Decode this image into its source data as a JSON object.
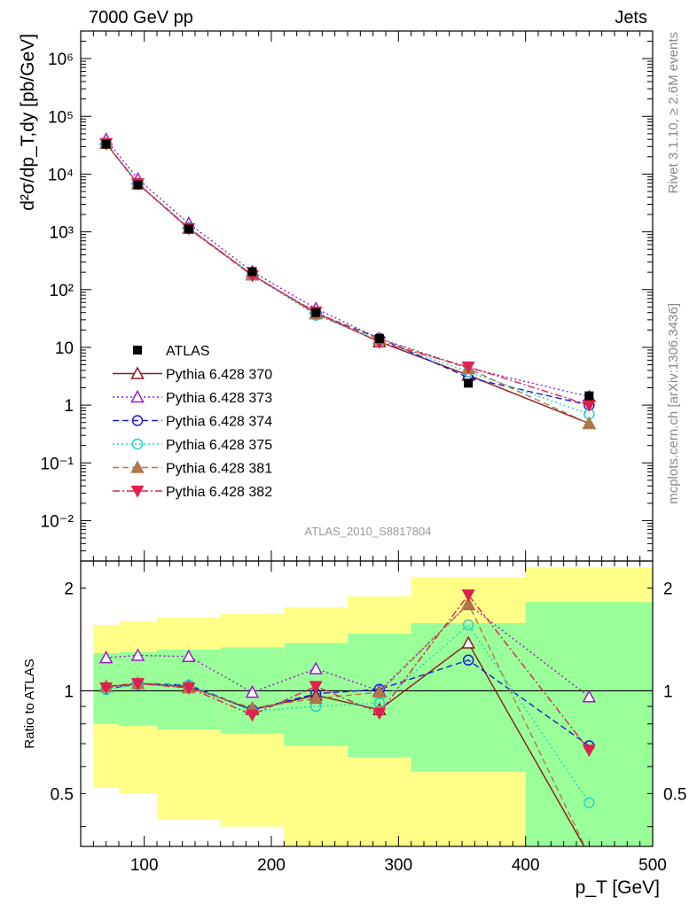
{
  "header": {
    "left": "7000 GeV pp",
    "right": "Jets"
  },
  "side_labels": {
    "rivet": "Rivet 3.1.10, ≥ 2.6M events",
    "mcplots": "mcplots.cern.ch [arXiv:1306.3436]"
  },
  "analysis_id": "ATLAS_2010_S8817804",
  "colors": {
    "atlas": "#000000",
    "p370": "#8b1a1a",
    "p373": "#9a1ac8",
    "p374": "#1a1ad8",
    "p375": "#22d4c4",
    "p381": "#b07848",
    "p382": "#e0204c",
    "band_inner": "#99ff99",
    "band_outer": "#ffff88"
  },
  "chart_data": [
    {
      "type": "line",
      "panel": "main",
      "ylabel": "d²σ/dp_T,dy [pb/GeV]",
      "yscale": "log",
      "ylim": [
        0.002,
        3000000
      ],
      "xlim": [
        50,
        500
      ],
      "y_tick_labels": [
        "10⁶",
        "10⁵",
        "10⁴",
        "10³",
        "10²",
        "10",
        "1",
        "10⁻¹",
        "10⁻²"
      ],
      "legend_position": "lower-left",
      "data_series": {
        "name": "ATLAS",
        "x": [
          70,
          95,
          135,
          185,
          235,
          285,
          355,
          450
        ],
        "y": [
          33000,
          6500,
          1120,
          205,
          40,
          14.2,
          2.4,
          1.45
        ]
      },
      "series": [
        {
          "name": "Pythia 6.428 370",
          "color_key": "p370",
          "marker": "triangle-up-open",
          "dash": "solid",
          "x": [
            70,
            95,
            135,
            185,
            235,
            285,
            355,
            450
          ],
          "y": [
            34000,
            6800,
            1150,
            180,
            39,
            12.5,
            3.3,
            0.48
          ]
        },
        {
          "name": "Pythia 6.428 373",
          "color_key": "p373",
          "marker": "triangle-up-open",
          "dash": "dot",
          "x": [
            70,
            95,
            135,
            185,
            235,
            285,
            355,
            450
          ],
          "y": [
            40000,
            8200,
            1400,
            205,
            47,
            14.2,
            4.4,
            1.4
          ]
        },
        {
          "name": "Pythia 6.428 374",
          "color_key": "p374",
          "marker": "circle-open",
          "dash": "dash",
          "x": [
            70,
            95,
            135,
            185,
            235,
            285,
            355,
            450
          ],
          "y": [
            33500,
            6850,
            1170,
            180,
            39,
            14.4,
            3.0,
            1.0
          ]
        },
        {
          "name": "Pythia 6.428 375",
          "color_key": "p375",
          "marker": "circle-open",
          "dash": "dot",
          "x": [
            70,
            95,
            135,
            185,
            235,
            285,
            355,
            450
          ],
          "y": [
            33500,
            6750,
            1160,
            178,
            36,
            13.0,
            3.8,
            0.7
          ]
        },
        {
          "name": "Pythia 6.428 381",
          "color_key": "p381",
          "marker": "triangle-up-filled",
          "dash": "dash",
          "x": [
            70,
            95,
            135,
            185,
            235,
            285,
            355,
            450
          ],
          "y": [
            34000,
            6800,
            1150,
            182,
            38,
            14.0,
            4.3,
            0.48
          ]
        },
        {
          "name": "Pythia 6.428 382",
          "color_key": "p382",
          "marker": "triangle-down-filled",
          "dash": "dashdot",
          "x": [
            70,
            95,
            135,
            185,
            235,
            285,
            355,
            450
          ],
          "y": [
            33800,
            6800,
            1140,
            175,
            41,
            12.3,
            4.6,
            1.0
          ]
        }
      ]
    },
    {
      "type": "line",
      "panel": "ratio",
      "xlabel": "p_T [GeV]",
      "ylabel": "Ratio to ATLAS",
      "yscale": "log",
      "ylim": [
        0.35,
        2.4
      ],
      "xlim": [
        50,
        500
      ],
      "x_ticks": [
        100,
        200,
        300,
        400,
        500
      ],
      "y_ticks": [
        0.5,
        1,
        2
      ],
      "reference_line": 1,
      "bands": [
        {
          "x": [
            60,
            80,
            110,
            160,
            210,
            260,
            310,
            400
          ],
          "x_end": 500,
          "inner_low": [
            0.8,
            0.79,
            0.77,
            0.75,
            0.69,
            0.64,
            0.58,
            0.33
          ],
          "inner_high": [
            1.29,
            1.3,
            1.32,
            1.34,
            1.38,
            1.47,
            1.58,
            1.82
          ],
          "outer_low": [
            0.52,
            0.5,
            0.42,
            0.4,
            0.33,
            0.3,
            0.28,
            0.25
          ],
          "outer_high": [
            1.56,
            1.6,
            1.64,
            1.68,
            1.76,
            1.89,
            2.15,
            2.3
          ]
        }
      ],
      "series": [
        {
          "name": "Pythia 6.428 370",
          "color_key": "p370",
          "marker": "triangle-up-open",
          "dash": "solid",
          "x": [
            70,
            95,
            135,
            185,
            235,
            285,
            355,
            450
          ],
          "y": [
            1.03,
            1.05,
            1.03,
            0.88,
            0.97,
            0.88,
            1.38,
            0.33
          ]
        },
        {
          "name": "Pythia 6.428 373",
          "color_key": "p373",
          "marker": "triangle-up-open",
          "dash": "dot",
          "x": [
            70,
            95,
            135,
            185,
            235,
            285,
            355,
            450
          ],
          "y": [
            1.25,
            1.27,
            1.26,
            0.99,
            1.16,
            1.0,
            1.79,
            0.96
          ]
        },
        {
          "name": "Pythia 6.428 374",
          "color_key": "p374",
          "marker": "circle-open",
          "dash": "dash",
          "x": [
            70,
            95,
            135,
            185,
            235,
            285,
            355,
            450
          ],
          "y": [
            1.01,
            1.05,
            1.04,
            0.88,
            0.98,
            1.01,
            1.23,
            0.69
          ]
        },
        {
          "name": "Pythia 6.428 375",
          "color_key": "p375",
          "marker": "circle-open",
          "dash": "dot",
          "x": [
            70,
            95,
            135,
            185,
            235,
            285,
            355,
            450
          ],
          "y": [
            1.01,
            1.04,
            1.04,
            0.87,
            0.9,
            0.92,
            1.56,
            0.47
          ]
        },
        {
          "name": "Pythia 6.428 381",
          "color_key": "p381",
          "marker": "triangle-up-filled",
          "dash": "dash",
          "x": [
            70,
            95,
            135,
            185,
            235,
            285,
            355,
            450
          ],
          "y": [
            1.03,
            1.05,
            1.02,
            0.89,
            0.95,
            0.99,
            1.8,
            0.33
          ]
        },
        {
          "name": "Pythia 6.428 382",
          "color_key": "p382",
          "marker": "triangle-down-filled",
          "dash": "dashdot",
          "x": [
            70,
            95,
            135,
            185,
            235,
            285,
            355,
            450
          ],
          "y": [
            1.02,
            1.05,
            1.02,
            0.85,
            1.03,
            0.86,
            1.91,
            0.67
          ]
        }
      ]
    }
  ]
}
